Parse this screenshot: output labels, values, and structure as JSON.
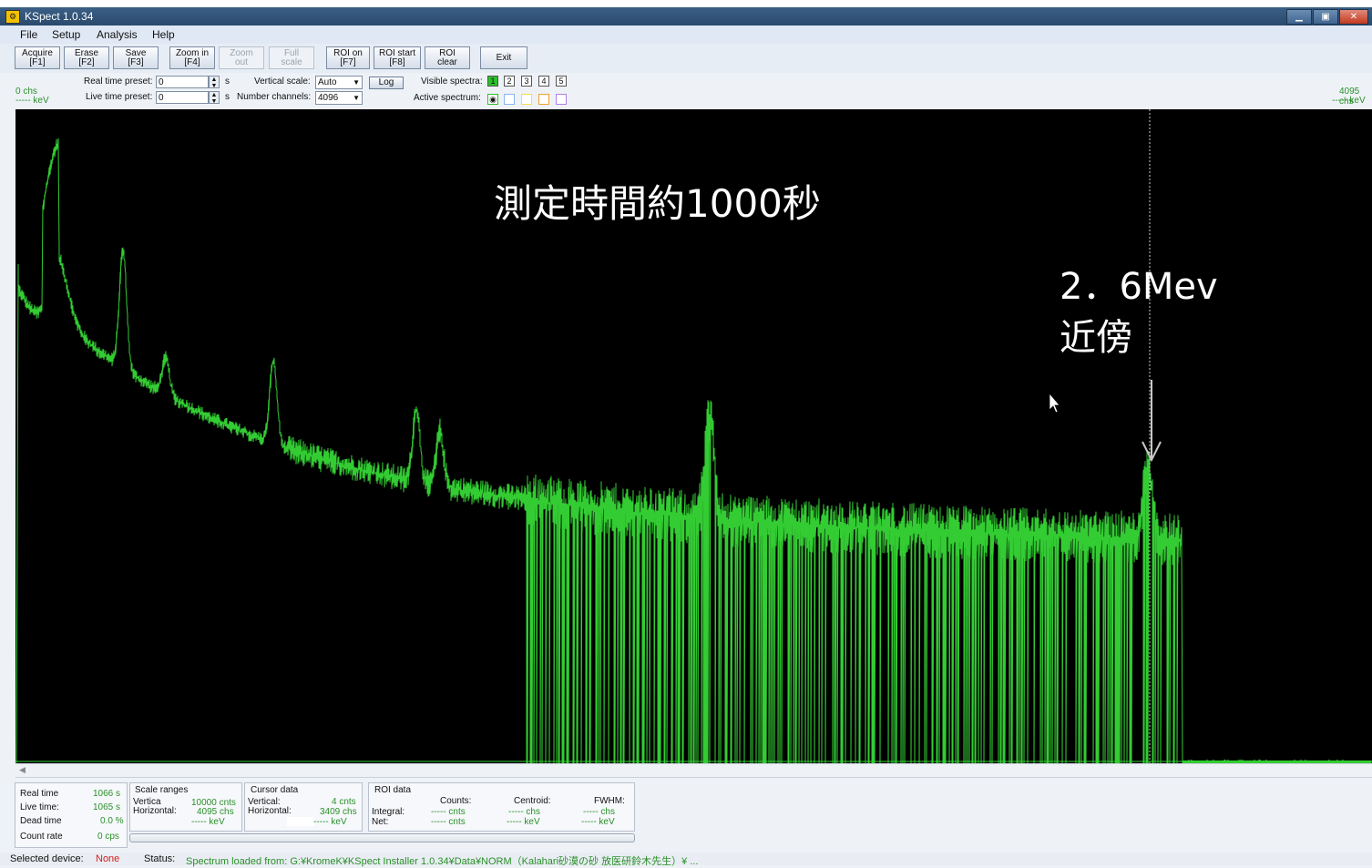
{
  "window": {
    "title": "KSpect 1.0.34",
    "icon": "kspect-app-icon",
    "buttons": [
      "minimize-icon",
      "maximize-icon",
      "close-icon"
    ]
  },
  "menu": [
    "File",
    "Setup",
    "Analysis",
    "Help"
  ],
  "toolbar": [
    {
      "line1": "Acquire",
      "line2": "[F1]",
      "enabled": true
    },
    {
      "line1": "Erase",
      "line2": "[F2]",
      "enabled": true
    },
    {
      "line1": "Save",
      "line2": "[F3]",
      "enabled": true
    },
    {
      "line1": "Zoom in",
      "line2": "[F4]",
      "enabled": true
    },
    {
      "line1": "Zoom",
      "line2": "out",
      "enabled": false
    },
    {
      "line1": "Full",
      "line2": "scale",
      "enabled": false
    },
    {
      "line1": "ROI on",
      "line2": "[F7]",
      "enabled": true
    },
    {
      "line1": "ROI start",
      "line2": "[F8]",
      "enabled": true
    },
    {
      "line1": "ROI",
      "line2": "clear",
      "enabled": true
    },
    {
      "line1": "Exit",
      "line2": "",
      "enabled": true
    }
  ],
  "controls": {
    "left_chs": "0 chs",
    "left_kev": "----- keV",
    "real_time_label": "Real time preset:",
    "real_time_value": "0",
    "live_time_label": "Live time preset:",
    "live_time_value": "0",
    "unit_s": "s",
    "vertical_scale_label": "Vertical scale:",
    "vertical_scale_value": "Auto",
    "number_channels_label": "Number channels:",
    "number_channels_value": "4096",
    "log_button": "Log",
    "visible_spectra_label": "Visible spectra:",
    "visible_spectra": [
      "1",
      "2",
      "3",
      "4",
      "5"
    ],
    "active_spectrum_label": "Active spectrum:",
    "active_colors": [
      "#2bbf2b",
      "#8ab4f0",
      "#f0e04a",
      "#f0a030",
      "#b080e0"
    ],
    "right_chs": "4095 chs",
    "right_kev": "----- keV"
  },
  "plot": {
    "annotation_title": "測定時間約1000秒",
    "annotation_energy_line1": "2．6Mev",
    "annotation_energy_line2": "近傍",
    "trace_color": "#33cc33"
  },
  "stats": {
    "real_time_label": "Real time",
    "real_time_value": "1066 s",
    "live_time_label": "Live time:",
    "live_time_value": "1065 s",
    "dead_time_label": "Dead time",
    "dead_time_value": "0.0 %",
    "count_rate_label": "Count rate",
    "count_rate_value": "0 cps"
  },
  "scale_ranges": {
    "title": "Scale ranges",
    "vertical_label": "Vertica",
    "vertical_value": "10000 cnts",
    "horizontal_label": "Horizontal:",
    "horizontal_value": "4095 chs",
    "kev_value": "----- keV"
  },
  "cursor_data": {
    "title": "Cursor data",
    "vertical_label": "Vertical:",
    "vertical_value": "4 cnts",
    "horizontal_label": "Horizontal:",
    "horizontal_value": "3409 chs",
    "kev_value": "----- keV"
  },
  "roi_data": {
    "title": "ROI data",
    "counts_label": "Counts:",
    "centroid_label": "Centroid:",
    "fwhm_label": "FWHM:",
    "integral_label": "Integral:",
    "net_label": "Net:",
    "integral_counts": "----- cnts",
    "net_counts": "----- cnts",
    "centroid_chs": "----- chs",
    "centroid_kev": "----- keV",
    "fwhm_chs": "----- chs",
    "fwhm_kev": "----- keV"
  },
  "status": {
    "selected_device_label": "Selected device:",
    "selected_device_value": "None",
    "status_label": "Status:",
    "status_value": "Spectrum loaded from: G:¥KromeK¥KSpect Installer 1.0.34¥Data¥NORM（Kalahari砂漠の砂 放医研鈴木先生）¥ ..."
  }
}
